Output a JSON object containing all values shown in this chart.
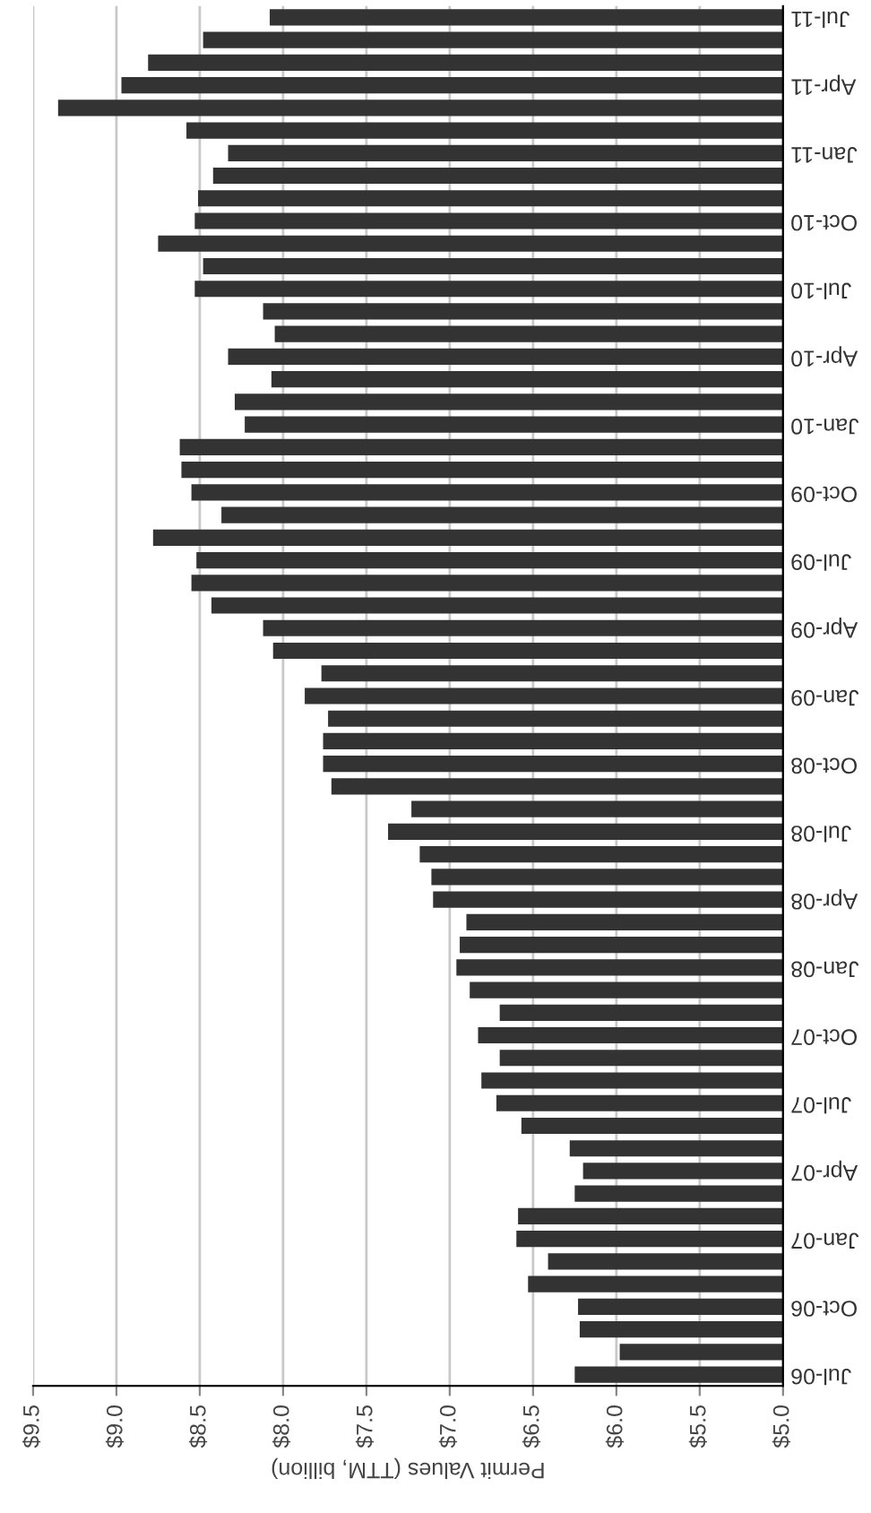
{
  "chart_data": {
    "type": "bar",
    "orientation": "horizontal",
    "xlabel": "Permit Values (TTM, billion)",
    "categories": [
      "Jul-11",
      null,
      null,
      "Apr-11",
      null,
      null,
      "Jan-11",
      null,
      null,
      "Oct-10",
      null,
      null,
      "Jul-10",
      null,
      null,
      "Apr-10",
      null,
      null,
      "Jan-10",
      null,
      null,
      "Oct-09",
      null,
      null,
      "Jul-09",
      null,
      null,
      "Apr-09",
      null,
      null,
      "Jan-09",
      null,
      null,
      "Oct-08",
      null,
      null,
      "Jul-08",
      null,
      null,
      "Apr-08",
      null,
      null,
      "Jan-08",
      null,
      null,
      "Oct-07",
      null,
      null,
      "Jul-07",
      null,
      null,
      "Apr-07",
      null,
      null,
      "Jan-07",
      null,
      null,
      "Oct-06",
      null,
      null,
      "Jul-06"
    ],
    "values": [
      8.08,
      8.48,
      8.81,
      8.97,
      9.35,
      8.58,
      8.33,
      8.42,
      8.51,
      8.53,
      8.75,
      8.48,
      8.53,
      8.12,
      8.05,
      8.33,
      8.07,
      8.29,
      8.23,
      8.62,
      8.61,
      8.55,
      8.37,
      8.78,
      8.52,
      8.55,
      8.43,
      8.12,
      8.06,
      7.77,
      7.87,
      7.73,
      7.76,
      7.76,
      7.71,
      7.23,
      7.37,
      7.18,
      7.11,
      7.1,
      6.9,
      6.94,
      6.96,
      6.88,
      6.7,
      6.83,
      6.7,
      6.81,
      6.72,
      6.57,
      6.28,
      6.2,
      6.25,
      6.59,
      6.6,
      6.41,
      6.53,
      6.23,
      6.22,
      5.98,
      6.25
    ],
    "color": "#333333",
    "xlim": [
      9.5,
      5.0
    ],
    "xticks": [
      {
        "value": 9.5,
        "label": "$9.5"
      },
      {
        "value": 9.0,
        "label": "$9.0"
      },
      {
        "value": 8.5,
        "label": "$8.5"
      },
      {
        "value": 8.0,
        "label": "$8.0"
      },
      {
        "value": 7.5,
        "label": "$7.5"
      },
      {
        "value": 7.0,
        "label": "$7.0"
      },
      {
        "value": 6.5,
        "label": "$6.5"
      },
      {
        "value": 6.0,
        "label": "$6.0"
      },
      {
        "value": 5.5,
        "label": "$5.5"
      },
      {
        "value": 5.0,
        "label": "$5.0"
      }
    ],
    "grid": "x"
  }
}
